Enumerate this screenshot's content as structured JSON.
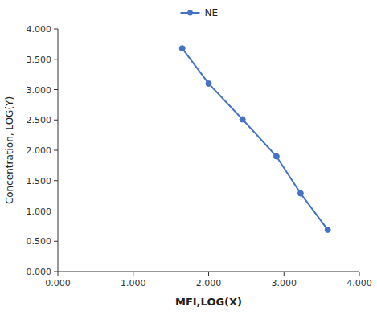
{
  "chart_data": {
    "type": "line",
    "xlabel": "MFI,LOG(X)",
    "ylabel": "Concentration, LOG(Y)",
    "x": [
      1.65,
      2.0,
      2.45,
      2.9,
      3.22,
      3.58
    ],
    "series": [
      {
        "name": "NE",
        "color": "#4472c4",
        "marker": "circle",
        "values": [
          3.68,
          3.1,
          2.51,
          1.9,
          1.29,
          0.69
        ]
      }
    ],
    "xlim": [
      0.0,
      4.0
    ],
    "ylim": [
      0.0,
      4.0
    ],
    "xticks": [
      {
        "value": 0,
        "label": "0.000"
      },
      {
        "value": 1,
        "label": "1.000"
      },
      {
        "value": 2,
        "label": "2.000"
      },
      {
        "value": 3,
        "label": "3.000"
      },
      {
        "value": 4,
        "label": "4.000"
      }
    ],
    "yticks": [
      {
        "value": 0,
        "label": "0.000"
      },
      {
        "value": 0.5,
        "label": "0.500"
      },
      {
        "value": 1,
        "label": "1.000"
      },
      {
        "value": 1.5,
        "label": "1.500"
      },
      {
        "value": 2,
        "label": "2.000"
      },
      {
        "value": 2.5,
        "label": "2.500"
      },
      {
        "value": 3,
        "label": "3.000"
      },
      {
        "value": 3.5,
        "label": "3.500"
      },
      {
        "value": 4,
        "label": "4.000"
      }
    ],
    "grid": false,
    "legend": "top"
  }
}
